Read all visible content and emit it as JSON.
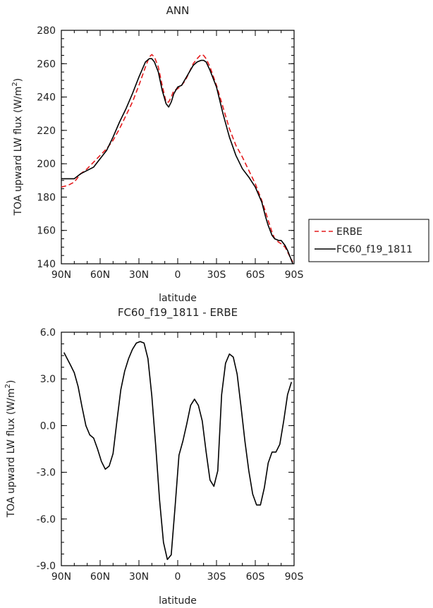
{
  "chart_data": [
    {
      "type": "line",
      "title": "ANN",
      "xlabel": "latitude",
      "ylabel": "TOA upward LW flux (W/m",
      "ylabel_sup": "2",
      "ylabel_close": ")",
      "xlim": [
        90,
        -90
      ],
      "ylim": [
        140,
        280
      ],
      "x_ticks": [
        90,
        60,
        30,
        0,
        -30,
        -60,
        -90
      ],
      "x_tick_labels": [
        "90N",
        "60N",
        "30N",
        "0",
        "30S",
        "60S",
        "90S"
      ],
      "y_ticks": [
        140,
        160,
        180,
        200,
        220,
        240,
        260,
        280
      ],
      "y_tick_labels": [
        "140",
        "160",
        "180",
        "200",
        "220",
        "240",
        "260",
        "280"
      ],
      "legend_position": "right",
      "series": [
        {
          "name": "ERBE",
          "color": "#e41a1c",
          "dash": "dashed",
          "x": [
            90,
            85,
            80,
            75,
            70,
            65,
            60,
            55,
            50,
            45,
            40,
            35,
            30,
            25,
            22,
            20,
            18,
            15,
            12,
            9,
            7,
            5,
            3,
            0,
            -3,
            -6,
            -9,
            -12,
            -15,
            -18,
            -20,
            -22,
            -25,
            -30,
            -35,
            -40,
            -45,
            -50,
            -55,
            -60,
            -65,
            -68,
            -70,
            -73,
            -75,
            -78,
            -80,
            -83,
            -85,
            -87,
            -89
          ],
          "y": [
            186,
            187,
            189,
            194,
            197,
            201,
            205,
            209,
            214,
            221,
            229,
            237,
            247,
            258,
            264,
            265.5,
            264,
            258,
            247,
            237,
            237,
            240,
            244,
            245,
            247,
            250,
            255,
            260,
            263,
            265.5,
            265,
            263,
            258,
            247,
            234,
            221,
            211,
            204,
            196,
            188,
            178,
            171,
            166,
            159,
            155,
            153,
            152,
            150,
            147,
            144,
            141
          ]
        },
        {
          "name": "FC60_f19_1811",
          "color": "#000000",
          "dash": "solid",
          "x": [
            90,
            85,
            80,
            75,
            70,
            65,
            60,
            55,
            50,
            45,
            40,
            35,
            30,
            25,
            22,
            20,
            18,
            15,
            12,
            9,
            7,
            5,
            3,
            0,
            -3,
            -6,
            -9,
            -12,
            -15,
            -18,
            -20,
            -22,
            -25,
            -30,
            -35,
            -40,
            -45,
            -50,
            -55,
            -60,
            -65,
            -68,
            -70,
            -73,
            -75,
            -78,
            -80,
            -83,
            -85,
            -87,
            -89
          ],
          "y": [
            191,
            191,
            191,
            194,
            196,
            198,
            203,
            208,
            216,
            225,
            233,
            242,
            252,
            261,
            263,
            263,
            261,
            255,
            244,
            236,
            234,
            237,
            242,
            246,
            247,
            251,
            255,
            259,
            261,
            262,
            262,
            261,
            256,
            246,
            230,
            216,
            205,
            197,
            192,
            186,
            177,
            168,
            163,
            157,
            155,
            154,
            154,
            151,
            148,
            144,
            140
          ]
        }
      ]
    },
    {
      "type": "line",
      "title": "FC60_f19_1811 - ERBE",
      "xlabel": "latitude",
      "ylabel": "TOA upward LW flux (W/m",
      "ylabel_sup": "2",
      "ylabel_close": ")",
      "xlim": [
        90,
        -90
      ],
      "ylim": [
        -9,
        6
      ],
      "x_ticks": [
        90,
        60,
        30,
        0,
        -30,
        -60,
        -90
      ],
      "x_tick_labels": [
        "90N",
        "60N",
        "30N",
        "0",
        "30S",
        "60S",
        "90S"
      ],
      "y_ticks": [
        -9,
        -6,
        -3,
        0,
        3,
        6
      ],
      "y_tick_labels": [
        "-9.0",
        "-6.0",
        "-3.0",
        "0.0",
        "3.0",
        "6.0"
      ],
      "series": [
        {
          "color": "#000000",
          "dash": "solid",
          "x": [
            88,
            83,
            80,
            77,
            74,
            71,
            68,
            65,
            62,
            59,
            56,
            53,
            50,
            47,
            44,
            41,
            38,
            35,
            32,
            29,
            26,
            23,
            20,
            17,
            14,
            11,
            8,
            5,
            2,
            -1,
            -4,
            -7,
            -10,
            -13,
            -16,
            -19,
            -22,
            -25,
            -28,
            -31,
            -34,
            -37,
            -40,
            -43,
            -46,
            -49,
            -52,
            -55,
            -58,
            -61,
            -64,
            -67,
            -70,
            -73,
            -76,
            -79,
            -82,
            -85,
            -88
          ],
          "y": [
            4.7,
            3.9,
            3.4,
            2.5,
            1.2,
            0,
            -0.6,
            -0.8,
            -1.5,
            -2.3,
            -2.8,
            -2.6,
            -1.8,
            0.3,
            2.3,
            3.5,
            4.3,
            4.9,
            5.3,
            5.4,
            5.3,
            4.3,
            1.9,
            -1.3,
            -4.8,
            -7.5,
            -8.6,
            -8.3,
            -5.2,
            -1.9,
            -1.0,
            0.1,
            1.3,
            1.7,
            1.3,
            0.3,
            -1.7,
            -3.5,
            -3.9,
            -2.9,
            2.0,
            4.0,
            4.6,
            4.4,
            3.3,
            1.2,
            -1.0,
            -2.9,
            -4.4,
            -5.1,
            -5.1,
            -4.0,
            -2.4,
            -1.7,
            -1.7,
            -1.2,
            0.3,
            2.0,
            2.8
          ]
        }
      ]
    }
  ]
}
